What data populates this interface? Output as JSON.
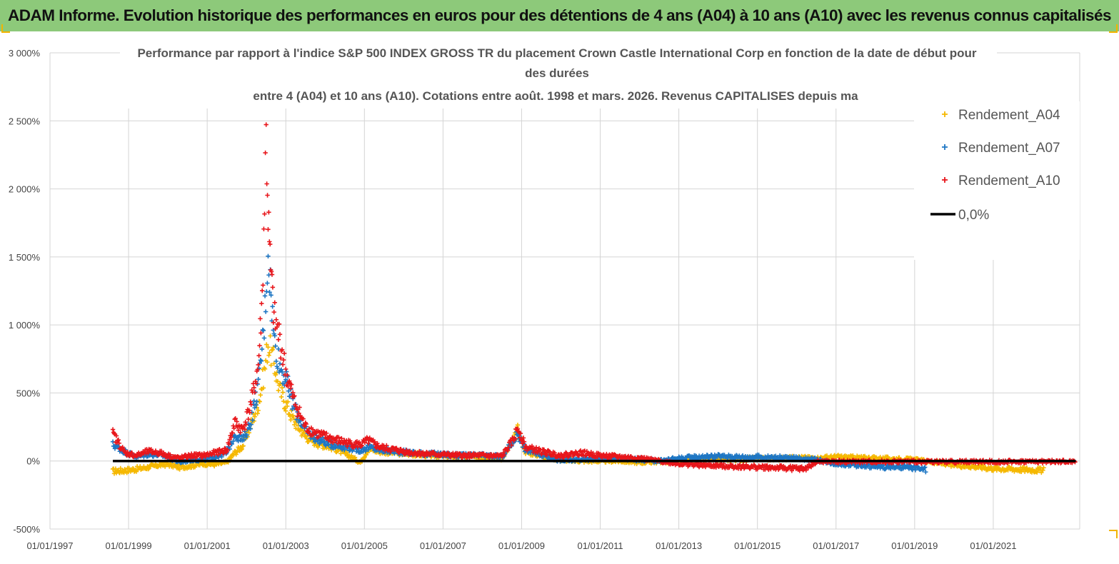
{
  "banner": {
    "title": "ADAM Informe. Evolution historique des performances en euros pour des détentions de 4 ans (A04) à 10 ans (A10) avec les revenus connus capitalisés"
  },
  "colors": {
    "banner_bg": "#8dc97a",
    "corner_accent": "#f2b400",
    "A04": "#f5b800",
    "A07": "#1f77c4",
    "A10": "#e8161b",
    "zero_line": "#000000",
    "grid": "#d4d4d4"
  },
  "chart_data": {
    "type": "scatter",
    "title": "Performance par rapport à l'indice S&P 500 INDEX GROSS TR  du placement Crown Castle International Corp en fonction de la date de début pour des durées",
    "subtitle": "entre 4 (A04) et 10 ans (A10). Cotations entre août. 1998 et mars. 2026. Revenus CAPITALISES depuis ma",
    "xlabel": "",
    "ylabel": "",
    "x_ticks": [
      "01/01/1997",
      "01/01/1999",
      "01/01/2001",
      "01/01/2003",
      "01/01/2005",
      "01/01/2007",
      "01/01/2009",
      "01/01/2011",
      "01/01/2013",
      "01/01/2015",
      "01/01/2017",
      "01/01/2019",
      "01/01/2021"
    ],
    "xlim": [
      1997.0,
      2023.2
    ],
    "y_ticks": [
      "-500%",
      "0%",
      "500%",
      "1 000%",
      "1 500%",
      "2 000%",
      "2 500%",
      "3 000%"
    ],
    "y_tick_values": [
      -500,
      0,
      500,
      1000,
      1500,
      2000,
      2500,
      3000
    ],
    "ylim": [
      -500,
      3000
    ],
    "grid": true,
    "legend_position": "top-right",
    "series": [
      {
        "name": "Rendement_A04",
        "marker": "+",
        "x": [
          1998.6,
          1998.9,
          1999.2,
          1999.5,
          1999.8,
          2000.0,
          2000.3,
          2000.6,
          2000.9,
          2001.2,
          2001.5,
          2001.7,
          2001.9,
          2002.1,
          2002.3,
          2002.45,
          2002.55,
          2002.7,
          2002.85,
          2003.0,
          2003.2,
          2003.5,
          2003.8,
          2004.2,
          2004.6,
          2004.9,
          2005.1,
          2005.4,
          2005.8,
          2006.2,
          2006.8,
          2007.4,
          2008.0,
          2008.5,
          2008.8,
          2008.9,
          2009.1,
          2009.5,
          2010.0,
          2010.5,
          2011.0,
          2011.5,
          2012.0,
          2012.5,
          2013.0,
          2013.5,
          2014.0,
          2014.5,
          2015.0,
          2015.5,
          2016.0,
          2016.5,
          2017.0,
          2017.5,
          2018.0,
          2018.5,
          2019.0,
          2019.5,
          2020.0,
          2020.5,
          2021.0,
          2021.5,
          2022.0,
          2022.3
        ],
        "y": [
          -75,
          -70,
          -60,
          -45,
          -30,
          -25,
          -45,
          -35,
          -20,
          -25,
          -10,
          60,
          110,
          260,
          420,
          650,
          870,
          720,
          520,
          420,
          300,
          180,
          130,
          100,
          40,
          -10,
          90,
          70,
          60,
          50,
          40,
          30,
          30,
          20,
          150,
          230,
          70,
          40,
          10,
          0,
          0,
          0,
          -10,
          -5,
          0,
          10,
          15,
          10,
          20,
          15,
          25,
          20,
          30,
          25,
          20,
          15,
          10,
          -10,
          -30,
          -40,
          -55,
          -60,
          -65,
          -70
        ]
      },
      {
        "name": "Rendement_A07",
        "marker": "+",
        "x": [
          1998.6,
          1998.9,
          1999.2,
          1999.5,
          1999.8,
          2000.0,
          2000.3,
          2000.6,
          2000.9,
          2001.2,
          2001.5,
          2001.7,
          2001.9,
          2002.1,
          2002.3,
          2002.45,
          2002.55,
          2002.7,
          2002.85,
          2003.0,
          2003.2,
          2003.5,
          2003.8,
          2004.2,
          2004.6,
          2004.9,
          2005.1,
          2005.4,
          2005.8,
          2006.2,
          2006.8,
          2007.4,
          2008.0,
          2008.5,
          2008.8,
          2008.9,
          2009.1,
          2009.5,
          2010.0,
          2010.5,
          2011.0,
          2011.5,
          2012.0,
          2012.5,
          2013.0,
          2013.5,
          2014.0,
          2014.5,
          2015.0,
          2015.5,
          2016.0,
          2016.5,
          2017.0,
          2017.5,
          2018.0,
          2018.5,
          2019.0,
          2019.3
        ],
        "y": [
          120,
          70,
          30,
          50,
          45,
          30,
          -10,
          10,
          10,
          30,
          60,
          200,
          150,
          280,
          550,
          1000,
          1550,
          900,
          700,
          600,
          400,
          220,
          160,
          120,
          100,
          80,
          100,
          80,
          70,
          60,
          50,
          40,
          40,
          30,
          150,
          210,
          80,
          50,
          0,
          10,
          20,
          20,
          10,
          0,
          20,
          30,
          35,
          30,
          30,
          25,
          20,
          10,
          -20,
          -30,
          -40,
          -45,
          -50,
          -65
        ]
      },
      {
        "name": "Rendement_A10",
        "marker": "+",
        "x": [
          1998.6,
          1998.9,
          1999.2,
          1999.5,
          1999.8,
          2000.0,
          2000.3,
          2000.6,
          2000.9,
          2001.2,
          2001.5,
          2001.7,
          2001.9,
          2002.1,
          2002.3,
          2002.4,
          2002.5,
          2002.55,
          2002.6,
          2002.7,
          2002.85,
          2003.0,
          2003.2,
          2003.5,
          2003.8,
          2004.2,
          2004.6,
          2004.9,
          2005.1,
          2005.4,
          2005.8,
          2006.2,
          2006.8,
          2007.4,
          2008.0,
          2008.5,
          2008.8,
          2008.9,
          2009.1,
          2009.5,
          2010.0,
          2010.5,
          2011.0,
          2011.5,
          2012.0,
          2012.5,
          2013.0,
          2013.5,
          2014.0,
          2014.5,
          2015.0,
          2015.5,
          2016.0,
          2016.2,
          2016.5,
          2017.0,
          2018.0,
          2019.0,
          2020.0,
          2021.0,
          2022.0,
          2023.1
        ],
        "y": [
          200,
          60,
          40,
          70,
          60,
          40,
          20,
          40,
          40,
          60,
          80,
          280,
          230,
          400,
          700,
          1200,
          2380,
          1800,
          1450,
          1050,
          900,
          650,
          450,
          250,
          200,
          160,
          130,
          120,
          150,
          100,
          80,
          60,
          50,
          40,
          40,
          35,
          160,
          250,
          100,
          70,
          40,
          60,
          40,
          30,
          20,
          0,
          -20,
          -30,
          -35,
          -40,
          -45,
          -50,
          -55,
          -60,
          -5,
          -5,
          -5,
          -5,
          -5,
          -5,
          -5,
          -5
        ]
      },
      {
        "name": "0,0%",
        "marker": "line",
        "x": [
          1998.6,
          2023.1
        ],
        "y": [
          0,
          0
        ]
      }
    ]
  }
}
